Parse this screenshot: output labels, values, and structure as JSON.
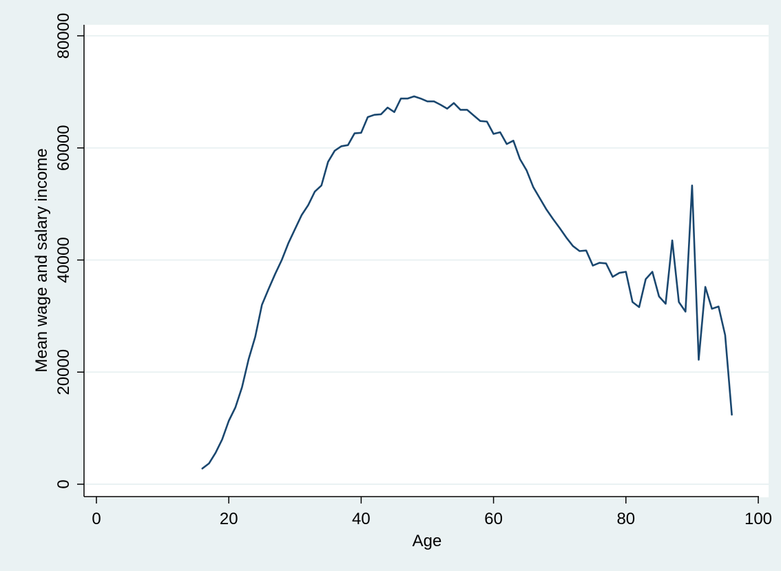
{
  "colors": {
    "outer_background": "#eaf2f3",
    "plot_background": "#ffffff",
    "gridline": "#eaf2f3",
    "series_line": "#1a476f",
    "axis": "#000000"
  },
  "chart_data": {
    "type": "line",
    "title": "",
    "xlabel": "Age",
    "ylabel": "Mean wage and salary income",
    "xlim": [
      0,
      100
    ],
    "ylim": [
      0,
      80000
    ],
    "xticks": [
      0,
      20,
      40,
      60,
      80,
      100
    ],
    "yticks": [
      0,
      20000,
      40000,
      60000,
      80000
    ],
    "grid": "horizontal",
    "legend": "none",
    "series": [
      {
        "x": [
          16,
          17,
          18,
          19,
          20,
          21,
          22,
          23,
          24,
          25,
          26,
          27,
          28,
          29,
          30,
          31,
          32,
          33,
          34,
          35,
          36,
          37,
          38,
          39,
          40,
          41,
          42,
          43,
          44,
          45,
          46,
          47,
          48,
          49,
          50,
          51,
          52,
          53,
          54,
          55,
          56,
          57,
          58,
          59,
          60,
          61,
          62,
          63,
          64,
          65,
          66,
          67,
          68,
          69,
          70,
          71,
          72,
          73,
          74,
          75,
          76,
          77,
          78,
          79,
          80,
          81,
          82,
          83,
          84,
          85,
          86,
          87,
          88,
          89,
          90,
          91,
          92,
          93,
          94,
          95,
          96
        ],
        "values": [
          2800,
          3700,
          5600,
          8000,
          11300,
          13700,
          17300,
          22300,
          26300,
          32000,
          34800,
          37500,
          40000,
          43000,
          45500,
          48000,
          49800,
          52200,
          53300,
          57500,
          59500,
          60300,
          60500,
          62600,
          62700,
          65500,
          65900,
          66000,
          67200,
          66400,
          68800,
          68800,
          69200,
          68800,
          68300,
          68300,
          67700,
          67000,
          68000,
          66800,
          66800,
          65800,
          64800,
          64700,
          62500,
          62800,
          60700,
          61300,
          58000,
          56000,
          53000,
          51000,
          49000,
          47300,
          45700,
          44000,
          42500,
          41600,
          41700,
          39000,
          39500,
          39400,
          37000,
          37700,
          37900,
          32500,
          31600,
          36600,
          37900,
          33500,
          32200,
          43500,
          32500,
          30800,
          53300,
          22200,
          35200,
          31300,
          31700,
          26600,
          12400
        ]
      }
    ]
  }
}
